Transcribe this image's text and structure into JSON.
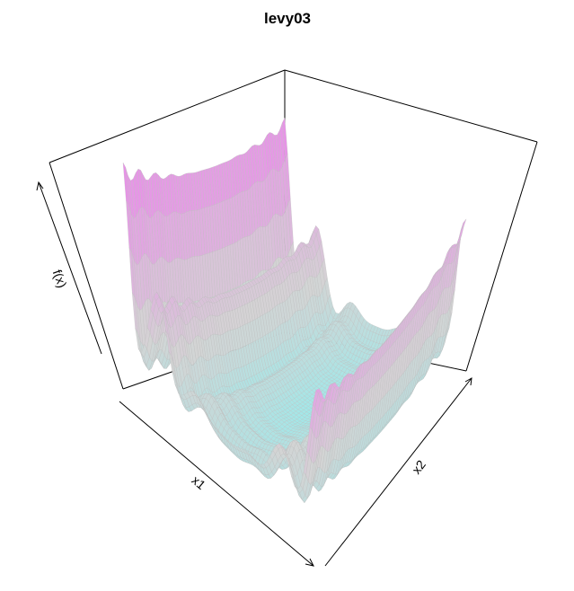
{
  "chart_data": {
    "type": "surface",
    "title": "levy03",
    "xlabel": "x1",
    "ylabel": "x2",
    "zlabel": "f(x)",
    "colors": {
      "low": "#9ee9ea",
      "mid": "#d4d4d4",
      "high": "#ea88ea",
      "mesh": "#bdbdbd",
      "box": "#000000"
    }
  }
}
